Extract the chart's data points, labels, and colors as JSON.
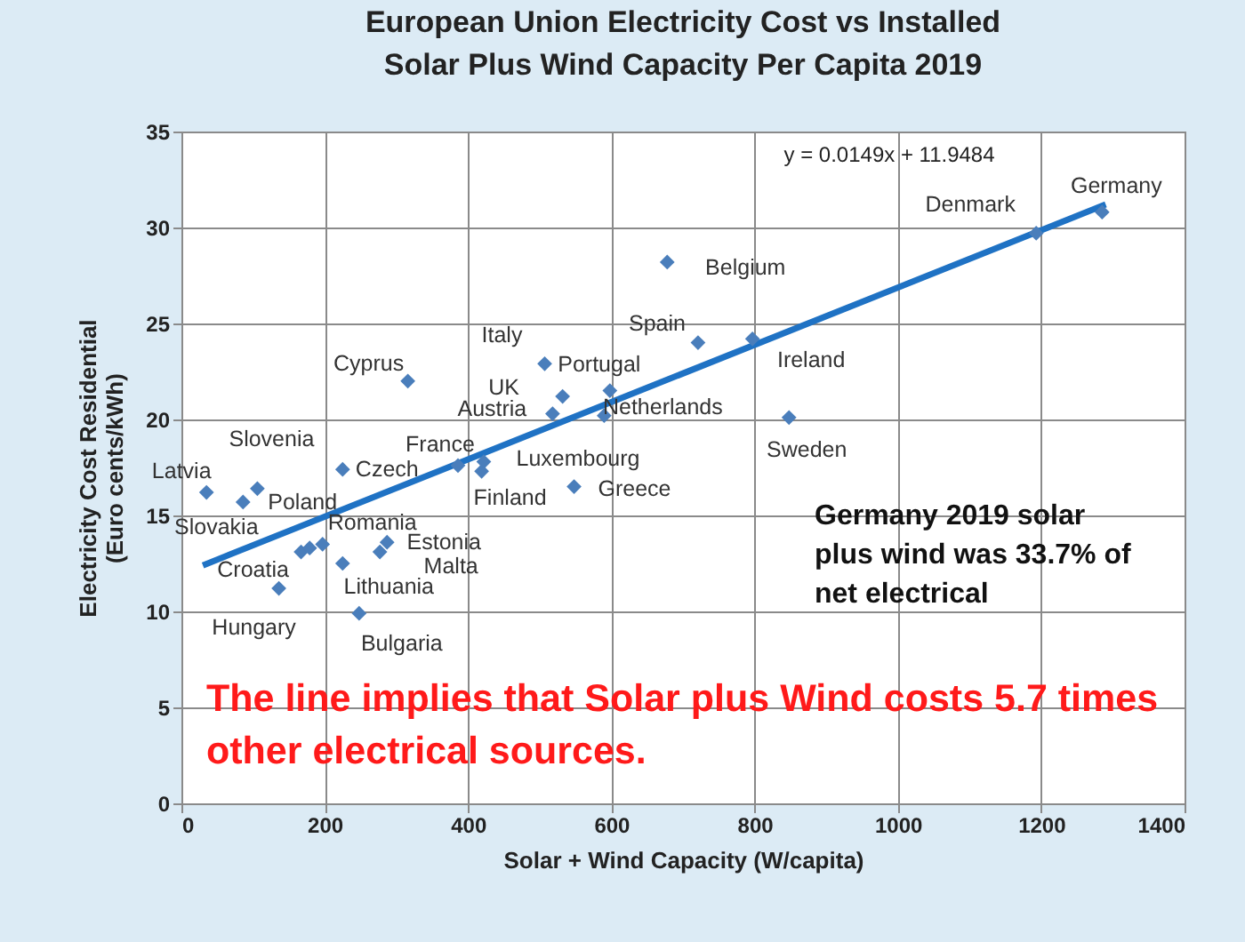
{
  "chart_data": {
    "type": "scatter",
    "title": "European Union Electricity Cost vs Installed\nSolar Plus Wind Capacity Per Capita 2019",
    "xlabel": "Solar + Wind Capacity (W/capita)",
    "ylabel": "Electricity Cost Residential\n(Euro cents/kWh)",
    "xlim": [
      0,
      1400
    ],
    "xticks": [
      0,
      200,
      400,
      600,
      800,
      1000,
      1200,
      1400
    ],
    "ylim": [
      0,
      35
    ],
    "yticks": [
      0,
      5,
      10,
      15,
      20,
      25,
      30,
      35
    ],
    "grid": true,
    "series": [
      {
        "marker": "diamond",
        "color": "#4a7ebb",
        "x": [
          35,
          106,
          86,
          167,
          179,
          197,
          136,
          225,
          225,
          287,
          277,
          248,
          316,
          386,
          419,
          422,
          548,
          507,
          532,
          518,
          598,
          590,
          721,
          678,
          797,
          848,
          1193,
          1285
        ],
        "values": [
          16.2,
          16.4,
          15.7,
          13.1,
          13.3,
          13.5,
          11.2,
          17.4,
          12.5,
          13.6,
          13.1,
          9.9,
          22.0,
          17.6,
          17.3,
          17.8,
          16.5,
          22.9,
          21.2,
          20.3,
          21.5,
          20.2,
          24.0,
          28.2,
          24.2,
          20.1,
          29.7,
          30.8
        ]
      },
      {
        "type": "line",
        "marker": "none",
        "color": "#1f72c4",
        "x": [
          30,
          1290
        ],
        "values": [
          12.4,
          31.2
        ]
      }
    ],
    "annotations": [
      {
        "text": "Latvia",
        "x": 35,
        "y": 16.2
      },
      {
        "text": "Slovenia",
        "x": 106,
        "y": 16.4
      },
      {
        "text": "Slovakia",
        "x": 86,
        "y": 15.7
      },
      {
        "text": "Croatia",
        "x": 167,
        "y": 13.1
      },
      {
        "text": "Poland",
        "x": 179,
        "y": 13.3
      },
      {
        "text": "Romania",
        "x": 197,
        "y": 13.5
      },
      {
        "text": "Hungary",
        "x": 136,
        "y": 11.2
      },
      {
        "text": "Czech",
        "x": 225,
        "y": 17.4
      },
      {
        "text": "Lithuania",
        "x": 225,
        "y": 12.5
      },
      {
        "text": "Estonia",
        "x": 287,
        "y": 13.6
      },
      {
        "text": "Malta",
        "x": 277,
        "y": 13.1
      },
      {
        "text": "Bulgaria",
        "x": 248,
        "y": 9.9
      },
      {
        "text": "Cyprus",
        "x": 316,
        "y": 22.0
      },
      {
        "text": "France",
        "x": 386,
        "y": 17.6
      },
      {
        "text": "Finland",
        "x": 419,
        "y": 17.3
      },
      {
        "text": "Luxembourg",
        "x": 422,
        "y": 17.8
      },
      {
        "text": "Greece",
        "x": 548,
        "y": 16.5
      },
      {
        "text": "Italy",
        "x": 507,
        "y": 22.9
      },
      {
        "text": "UK",
        "x": 532,
        "y": 21.2
      },
      {
        "text": "Austria",
        "x": 518,
        "y": 20.3
      },
      {
        "text": "Portugal",
        "x": 598,
        "y": 21.5
      },
      {
        "text": "Netherlands",
        "x": 590,
        "y": 20.2
      },
      {
        "text": "Spain",
        "x": 721,
        "y": 24.0
      },
      {
        "text": "Belgium",
        "x": 678,
        "y": 28.2
      },
      {
        "text": "Ireland",
        "x": 797,
        "y": 24.2
      },
      {
        "text": "Sweden",
        "x": 848,
        "y": 20.1
      },
      {
        "text": "Denmark",
        "x": 1193,
        "y": 29.7
      },
      {
        "text": "Germany",
        "x": 1285,
        "y": 30.8
      },
      "y = 0.0149x + 11.9484",
      "Germany 2019 solar\nplus wind was 33.7% of\nnet electrical",
      "The line implies that Solar plus Wind costs 5.7 times\nother electrical sources."
    ]
  }
}
